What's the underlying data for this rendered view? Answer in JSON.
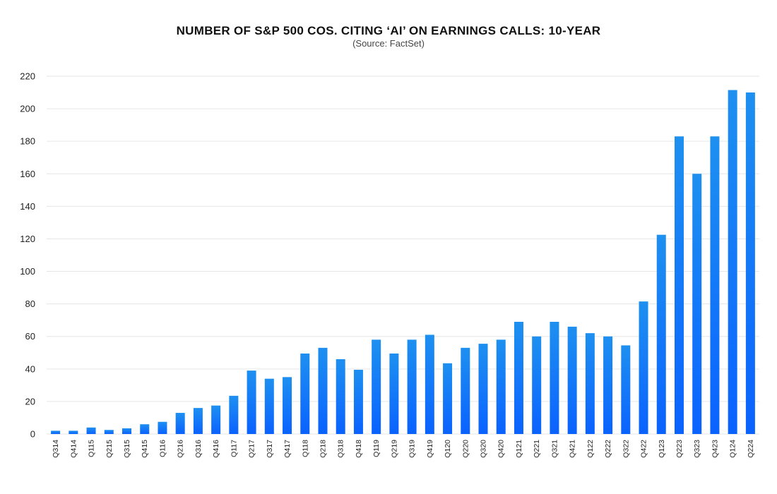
{
  "chart_data": {
    "type": "bar",
    "title": "NUMBER OF S&P 500 COS. CITING ‘AI’ ON EARNINGS CALLS: 10-YEAR",
    "subtitle": "(Source: FactSet)",
    "xlabel": "",
    "ylabel": "",
    "ylim": [
      0,
      220
    ],
    "yticks": [
      0,
      20,
      40,
      60,
      80,
      100,
      120,
      140,
      160,
      180,
      200,
      220
    ],
    "grid": true,
    "categories": [
      "Q314",
      "Q414",
      "Q115",
      "Q215",
      "Q315",
      "Q415",
      "Q116",
      "Q216",
      "Q316",
      "Q416",
      "Q117",
      "Q217",
      "Q317",
      "Q417",
      "Q118",
      "Q218",
      "Q318",
      "Q418",
      "Q119",
      "Q219",
      "Q319",
      "Q419",
      "Q120",
      "Q220",
      "Q320",
      "Q420",
      "Q121",
      "Q221",
      "Q321",
      "Q421",
      "Q122",
      "Q222",
      "Q322",
      "Q422",
      "Q123",
      "Q223",
      "Q323",
      "Q423",
      "Q124",
      "Q224"
    ],
    "values": [
      2,
      2,
      4,
      2.5,
      3.5,
      6,
      7.5,
      13,
      16,
      17.5,
      23.5,
      39,
      34,
      35,
      49.5,
      53,
      46,
      39.5,
      58,
      49.5,
      58,
      61,
      43.5,
      53,
      55.5,
      58,
      69,
      60,
      69,
      66,
      62,
      60,
      54.5,
      81.5,
      122.5,
      183,
      160,
      183,
      211.5,
      210
    ],
    "colors": {
      "bar_top": "#1e90f0",
      "bar_bottom": "#0a62ff",
      "grid": "#e6e6e6"
    }
  }
}
